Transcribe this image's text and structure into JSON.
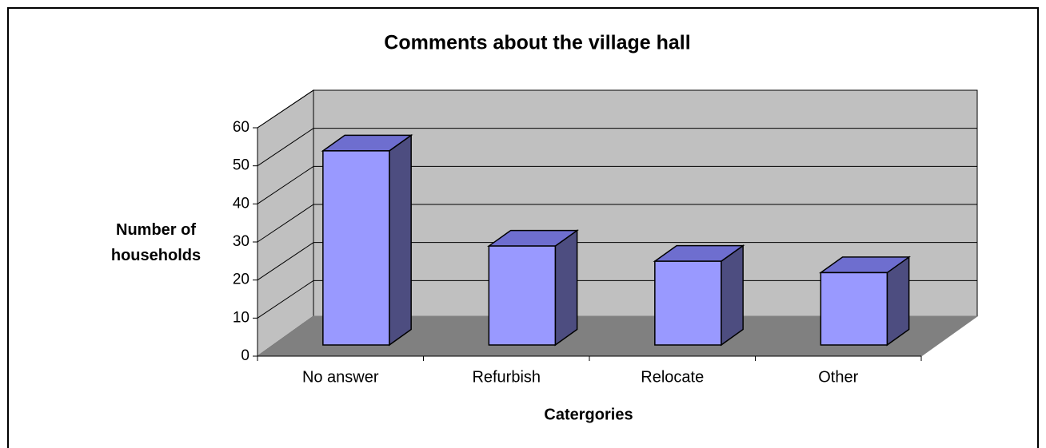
{
  "chart_data": {
    "type": "bar3d",
    "title": "Comments about the village hall",
    "x_label": "Catergories",
    "y_label": "Number of households",
    "categories": [
      "No answer",
      "Refurbish",
      "Relocate",
      "Other"
    ],
    "values": [
      51,
      26,
      22,
      19
    ],
    "color": "#9999ff",
    "ylim": [
      0,
      60
    ],
    "yticks": [
      0,
      10,
      20,
      30,
      40,
      50,
      60
    ],
    "grid": true
  }
}
